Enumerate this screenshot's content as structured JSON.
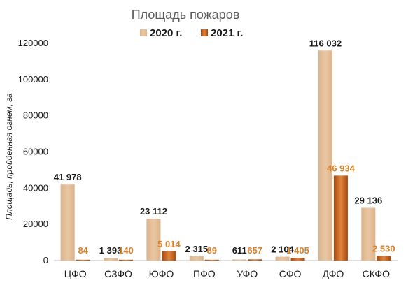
{
  "chart_data": {
    "type": "bar",
    "title": "Площадь пожаров",
    "ylabel": "Площадь, пройденная огнем, га",
    "xlabel": "",
    "ylim": [
      0,
      120000
    ],
    "yticks": [
      0,
      20000,
      40000,
      60000,
      80000,
      100000,
      120000
    ],
    "legend_position": "top",
    "grid": false,
    "categories": [
      "ЦФО",
      "СЗФО",
      "ЮФО",
      "ПФО",
      "УФО",
      "СФО",
      "ДФО",
      "СКФО"
    ],
    "series": [
      {
        "name": "2020 г.",
        "color": "#e3bd97",
        "label_color": "#1a1a1a",
        "values": [
          41978,
          1393,
          23112,
          2315,
          611,
          2104,
          116032,
          29136
        ],
        "labels": [
          "41 978",
          "1 393",
          "23 112",
          "2 315",
          "611",
          "2 104",
          "116 032",
          "29 136"
        ]
      },
      {
        "name": "2021 г.",
        "color": "#c9641e",
        "label_color": "#d9822b",
        "values": [
          84,
          140,
          5014,
          89,
          657,
          1405,
          46934,
          2530
        ],
        "labels": [
          "84",
          "140",
          "5 014",
          "89",
          "657",
          "1 405",
          "46 934",
          "2 530"
        ]
      }
    ]
  }
}
